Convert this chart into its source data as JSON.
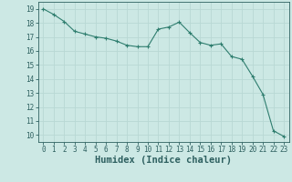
{
  "x": [
    0,
    1,
    2,
    3,
    4,
    5,
    6,
    7,
    8,
    9,
    10,
    11,
    12,
    13,
    14,
    15,
    16,
    17,
    18,
    19,
    20,
    21,
    22,
    23
  ],
  "y": [
    19.0,
    18.6,
    18.1,
    17.4,
    17.2,
    17.0,
    16.9,
    16.7,
    16.4,
    16.3,
    16.3,
    17.55,
    17.7,
    18.05,
    17.3,
    16.6,
    16.4,
    16.5,
    15.6,
    15.4,
    14.2,
    12.9,
    10.3,
    9.9
  ],
  "line_color": "#2e7d6e",
  "marker": "+",
  "marker_color": "#2e7d6e",
  "bg_color": "#cce8e4",
  "grid_color": "#b8d8d4",
  "xlabel": "Humidex (Indice chaleur)",
  "xlim": [
    -0.5,
    23.5
  ],
  "ylim": [
    9.5,
    19.5
  ],
  "yticks": [
    10,
    11,
    12,
    13,
    14,
    15,
    16,
    17,
    18,
    19
  ],
  "xticks": [
    0,
    1,
    2,
    3,
    4,
    5,
    6,
    7,
    8,
    9,
    10,
    11,
    12,
    13,
    14,
    15,
    16,
    17,
    18,
    19,
    20,
    21,
    22,
    23
  ],
  "tick_color": "#2e6060",
  "label_color": "#2e6060",
  "axis_color": "#2e6060",
  "xlabel_fontsize": 7.5,
  "tick_fontsize": 5.5
}
